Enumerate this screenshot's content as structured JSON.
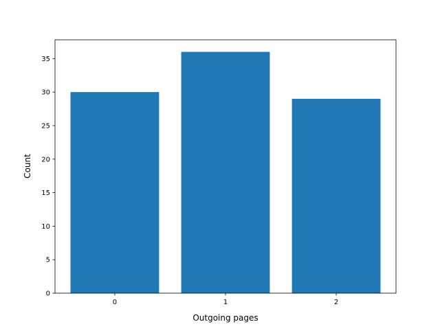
{
  "chart_data": {
    "type": "bar",
    "categories": [
      "0",
      "1",
      "2"
    ],
    "values": [
      30,
      36,
      29
    ],
    "title": "",
    "xlabel": "Outgoing pages",
    "ylabel": "Count",
    "ylim": [
      0,
      37.8
    ],
    "xlim": [
      -0.54,
      2.54
    ],
    "yticks": [
      0,
      5,
      10,
      15,
      20,
      25,
      30,
      35
    ],
    "bar_color": "#1f77b4",
    "grid": false
  }
}
